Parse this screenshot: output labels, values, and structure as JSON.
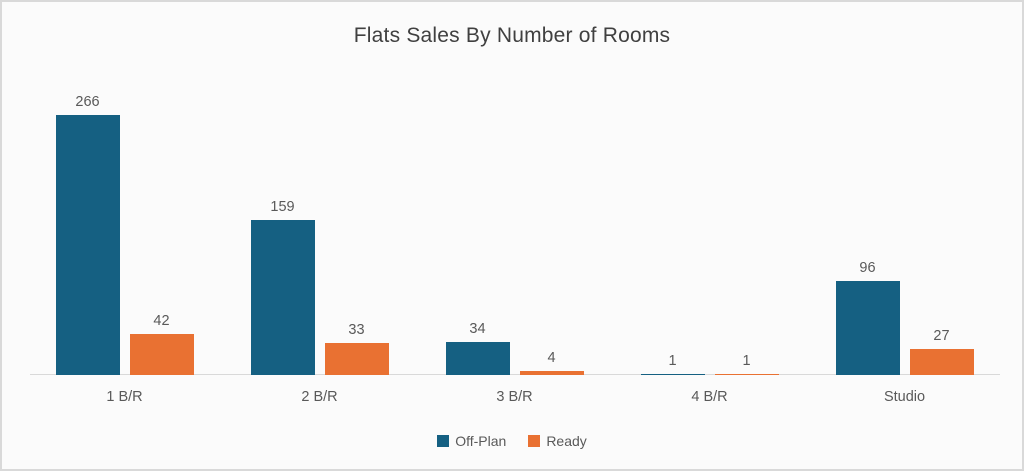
{
  "chart": {
    "colors": {
      "off_plan": "#156082",
      "ready": "#E97132",
      "axis_line": "#D9D9D9",
      "frame_border": "#D9D9D9",
      "background": "#FBFBFB",
      "title_text": "#404040",
      "label_text": "#595959"
    }
  },
  "chart_data": {
    "type": "bar",
    "title": "Flats Sales By Number of Rooms",
    "categories": [
      "1 B/R",
      "2 B/R",
      "3 B/R",
      "4 B/R",
      "Studio"
    ],
    "series": [
      {
        "name": "Off-Plan",
        "color": "#156082",
        "values": [
          266,
          159,
          34,
          1,
          96
        ]
      },
      {
        "name": "Ready",
        "color": "#E97132",
        "values": [
          42,
          33,
          4,
          1,
          27
        ]
      }
    ],
    "xlabel": "",
    "ylabel": "",
    "ylim": [
      0,
      280
    ],
    "grid": false,
    "y_axis_visible": false,
    "legend_position": "bottom",
    "data_labels": true
  }
}
